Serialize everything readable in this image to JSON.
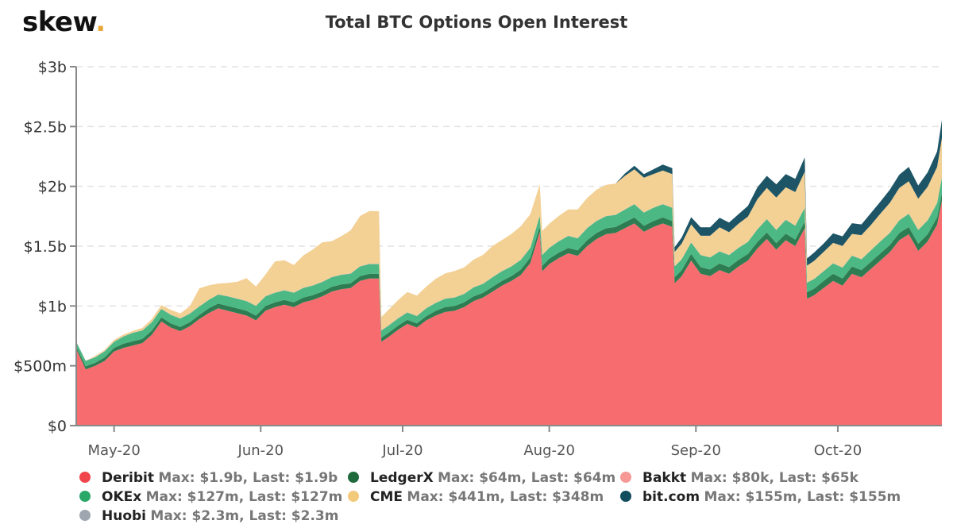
{
  "logo": {
    "text": "skew",
    "dot": "."
  },
  "chart_data": {
    "type": "area",
    "stacked": true,
    "title": "Total BTC Options Open Interest",
    "xlabel": "",
    "ylabel": "",
    "ylim": [
      0,
      3000
    ],
    "yunit": "USD millions",
    "yticks": [
      {
        "value": 0,
        "label": "$0"
      },
      {
        "value": 500,
        "label": "$500m"
      },
      {
        "value": 1000,
        "label": "$1b"
      },
      {
        "value": 1500,
        "label": "$1.5b"
      },
      {
        "value": 2000,
        "label": "$2b"
      },
      {
        "value": 2500,
        "label": "$2.5b"
      },
      {
        "value": 3000,
        "label": "$3b"
      }
    ],
    "xrange": [
      "2020-04-23",
      "2020-10-23"
    ],
    "xticks": [
      {
        "date": "2020-05-01",
        "label": "May-20"
      },
      {
        "date": "2020-06-01",
        "label": "Jun-20"
      },
      {
        "date": "2020-07-01",
        "label": "Jul-20"
      },
      {
        "date": "2020-08-01",
        "label": "Aug-20"
      },
      {
        "date": "2020-09-01",
        "label": "Sep-20"
      },
      {
        "date": "2020-10-01",
        "label": "Oct-20"
      }
    ],
    "grid": true,
    "legend_position": "bottom",
    "x_days_from_start": [
      0,
      2,
      4,
      6,
      8,
      10,
      12,
      14,
      16,
      18,
      20,
      22,
      24,
      26,
      28,
      30,
      32,
      34,
      36,
      38,
      40,
      42,
      44,
      46,
      48,
      50,
      52,
      54,
      56,
      58,
      60,
      62,
      64,
      64.5,
      66,
      68,
      70,
      72,
      74,
      76,
      78,
      80,
      82,
      84,
      86,
      88,
      90,
      92,
      94,
      96,
      98,
      98.5,
      100,
      102,
      104,
      106,
      108,
      110,
      112,
      114,
      116,
      118,
      120,
      122,
      124,
      126,
      126.5,
      128,
      130,
      132,
      134,
      136,
      138,
      140,
      142,
      144,
      146,
      148,
      150,
      152,
      154,
      154.5,
      156,
      158,
      160,
      162,
      164,
      166,
      168,
      170,
      172,
      174,
      176,
      178,
      180,
      182,
      183
    ],
    "series": [
      {
        "name": "Deribit",
        "color": "#f76d6f",
        "max_label": "Max: $1.9b, Last: $1.9b",
        "values": [
          640,
          470,
          500,
          540,
          620,
          650,
          670,
          690,
          760,
          870,
          820,
          790,
          830,
          890,
          940,
          980,
          960,
          940,
          920,
          880,
          960,
          990,
          1010,
          990,
          1030,
          1050,
          1080,
          1120,
          1140,
          1150,
          1210,
          1230,
          1230,
          700,
          740,
          800,
          850,
          820,
          880,
          920,
          950,
          960,
          990,
          1040,
          1070,
          1120,
          1170,
          1210,
          1260,
          1360,
          1620,
          1290,
          1350,
          1400,
          1440,
          1420,
          1500,
          1560,
          1600,
          1610,
          1650,
          1690,
          1620,
          1660,
          1690,
          1660,
          1190,
          1250,
          1380,
          1270,
          1250,
          1300,
          1270,
          1330,
          1380,
          1480,
          1560,
          1470,
          1550,
          1500,
          1650,
          1060,
          1090,
          1150,
          1210,
          1170,
          1270,
          1240,
          1310,
          1380,
          1450,
          1550,
          1600,
          1460,
          1540,
          1680,
          1880,
          1900
        ]
      },
      {
        "name": "LedgerX",
        "color": "#2e7d52",
        "max_label": "Max: $64m, Last: $64m",
        "values": [
          20,
          25,
          25,
          30,
          30,
          35,
          35,
          35,
          35,
          35,
          35,
          35,
          35,
          35,
          40,
          40,
          40,
          40,
          40,
          40,
          40,
          40,
          40,
          40,
          40,
          40,
          40,
          40,
          40,
          40,
          40,
          40,
          40,
          35,
          35,
          35,
          35,
          35,
          35,
          40,
          40,
          40,
          40,
          40,
          40,
          40,
          40,
          40,
          45,
          45,
          45,
          45,
          45,
          45,
          45,
          45,
          50,
          50,
          50,
          50,
          50,
          50,
          50,
          50,
          50,
          50,
          50,
          50,
          55,
          55,
          55,
          55,
          55,
          55,
          55,
          55,
          55,
          55,
          55,
          55,
          55,
          55,
          55,
          60,
          60,
          60,
          60,
          60,
          60,
          60,
          60,
          60,
          60,
          60,
          60,
          60,
          64,
          64
        ]
      },
      {
        "name": "OKEx",
        "color": "#4cb884",
        "max_label": "Max: $127m, Last: $127m",
        "values": [
          40,
          45,
          45,
          50,
          50,
          60,
          70,
          70,
          70,
          70,
          70,
          70,
          70,
          70,
          70,
          75,
          80,
          80,
          80,
          80,
          80,
          80,
          80,
          80,
          80,
          80,
          80,
          80,
          80,
          80,
          80,
          80,
          80,
          60,
          60,
          60,
          60,
          60,
          65,
          65,
          70,
          70,
          70,
          75,
          75,
          80,
          80,
          80,
          80,
          80,
          90,
          90,
          90,
          95,
          100,
          100,
          100,
          100,
          100,
          100,
          105,
          110,
          110,
          110,
          110,
          110,
          90,
          90,
          95,
          100,
          100,
          100,
          100,
          100,
          100,
          105,
          110,
          110,
          115,
          115,
          115,
          80,
          80,
          80,
          85,
          90,
          90,
          90,
          95,
          100,
          100,
          105,
          110,
          115,
          115,
          120,
          127,
          127
        ]
      },
      {
        "name": "Huobi",
        "color": "#9ea7b0",
        "max_label": "Max: $2.3m, Last: $2.3m",
        "values": [
          2,
          2,
          2,
          2,
          2,
          2,
          2,
          2,
          2,
          2,
          2,
          2,
          2,
          2,
          2,
          2,
          2,
          2,
          2,
          2,
          2,
          2,
          2,
          2,
          2,
          2,
          2,
          2,
          2,
          2,
          2,
          2,
          2,
          2,
          2,
          2,
          2,
          2,
          2,
          2,
          2,
          2,
          2,
          2,
          2,
          2,
          2,
          2,
          2,
          2,
          2,
          2,
          2,
          2,
          2,
          2,
          2,
          2,
          2,
          2,
          2,
          2,
          2,
          2,
          2,
          2,
          2,
          2,
          2,
          2,
          2,
          2,
          2,
          2,
          2,
          2,
          2,
          2,
          2,
          2,
          2,
          2,
          2,
          2,
          2,
          2,
          2,
          2,
          2,
          2,
          2,
          2,
          2,
          2,
          2,
          2,
          2.3,
          2.3
        ]
      },
      {
        "name": "Bakkt",
        "color": "#f59896",
        "max_label": "Max: $80k, Last: $65k",
        "values": [
          0.07,
          0.07,
          0.07,
          0.07,
          0.07,
          0.07,
          0.07,
          0.07,
          0.07,
          0.07,
          0.07,
          0.07,
          0.07,
          0.07,
          0.07,
          0.07,
          0.07,
          0.07,
          0.07,
          0.07,
          0.07,
          0.07,
          0.07,
          0.07,
          0.07,
          0.07,
          0.07,
          0.07,
          0.07,
          0.07,
          0.07,
          0.07,
          0.07,
          0.07,
          0.07,
          0.07,
          0.07,
          0.07,
          0.07,
          0.07,
          0.07,
          0.07,
          0.07,
          0.07,
          0.07,
          0.07,
          0.07,
          0.07,
          0.07,
          0.07,
          0.07,
          0.07,
          0.07,
          0.07,
          0.07,
          0.07,
          0.07,
          0.07,
          0.07,
          0.07,
          0.07,
          0.07,
          0.07,
          0.07,
          0.07,
          0.07,
          0.07,
          0.07,
          0.07,
          0.07,
          0.07,
          0.07,
          0.07,
          0.07,
          0.07,
          0.07,
          0.07,
          0.07,
          0.07,
          0.07,
          0.08,
          0.07,
          0.07,
          0.07,
          0.07,
          0.07,
          0.07,
          0.07,
          0.07,
          0.07,
          0.07,
          0.07,
          0.07,
          0.07,
          0.07,
          0.07,
          0.065,
          0.065
        ]
      },
      {
        "name": "CME",
        "color": "#f3d094",
        "max_label": "Max: $441m, Last: $348m",
        "values": [
          0,
          0,
          10,
          10,
          15,
          15,
          15,
          20,
          25,
          30,
          40,
          40,
          60,
          150,
          120,
          90,
          110,
          140,
          190,
          160,
          180,
          260,
          250,
          230,
          270,
          300,
          330,
          300,
          320,
          360,
          420,
          441,
          440,
          110,
          130,
          150,
          170,
          170,
          180,
          200,
          210,
          220,
          220,
          230,
          240,
          260,
          260,
          270,
          280,
          280,
          260,
          200,
          200,
          210,
          220,
          240,
          250,
          260,
          260,
          260,
          280,
          290,
          290,
          280,
          280,
          280,
          120,
          130,
          150,
          160,
          180,
          200,
          190,
          200,
          210,
          250,
          260,
          270,
          270,
          280,
          300,
          140,
          150,
          160,
          170,
          180,
          180,
          200,
          210,
          230,
          250,
          270,
          270,
          260,
          280,
          300,
          330,
          348
        ]
      },
      {
        "name": "bit.com",
        "color": "#1e5566",
        "max_label": "Max: $155m, Last: $155m",
        "values": [
          0,
          0,
          0,
          0,
          0,
          0,
          0,
          0,
          0,
          0,
          0,
          0,
          0,
          0,
          0,
          0,
          0,
          0,
          0,
          0,
          0,
          0,
          0,
          0,
          0,
          0,
          0,
          0,
          0,
          0,
          0,
          0,
          0,
          0,
          0,
          0,
          0,
          0,
          0,
          0,
          0,
          0,
          0,
          0,
          0,
          0,
          0,
          0,
          0,
          0,
          0,
          0,
          0,
          0,
          0,
          0,
          0,
          0,
          0,
          0,
          20,
          30,
          30,
          40,
          50,
          50,
          40,
          50,
          60,
          70,
          70,
          80,
          80,
          80,
          90,
          100,
          100,
          110,
          110,
          110,
          120,
          60,
          70,
          70,
          80,
          80,
          90,
          90,
          100,
          100,
          110,
          110,
          120,
          110,
          120,
          130,
          150,
          155
        ]
      }
    ],
    "stack_order": [
      "Deribit",
      "LedgerX",
      "OKEx",
      "Huobi",
      "Bakkt",
      "CME",
      "bit.com"
    ]
  },
  "legend": {
    "rows": [
      [
        {
          "name": "Deribit",
          "stats": "Max: $1.9b, Last: $1.9b",
          "color": "#f0454a"
        },
        {
          "name": "LedgerX",
          "stats": "Max: $64m, Last: $64m",
          "color": "#1f6a3c"
        },
        {
          "name": "Bakkt",
          "stats": "Max: $80k, Last: $65k",
          "color": "#f59896"
        }
      ],
      [
        {
          "name": "OKEx",
          "stats": "Max: $127m, Last: $127m",
          "color": "#2aa868"
        },
        {
          "name": "CME",
          "stats": "Max: $441m, Last: $348m",
          "color": "#f3c97a"
        },
        {
          "name": "bit.com",
          "stats": "Max: $155m, Last: $155m",
          "color": "#134e5e"
        }
      ],
      [
        {
          "name": "Huobi",
          "stats": "Max: $2.3m, Last: $2.3m",
          "color": "#9ea7b0"
        }
      ]
    ]
  }
}
